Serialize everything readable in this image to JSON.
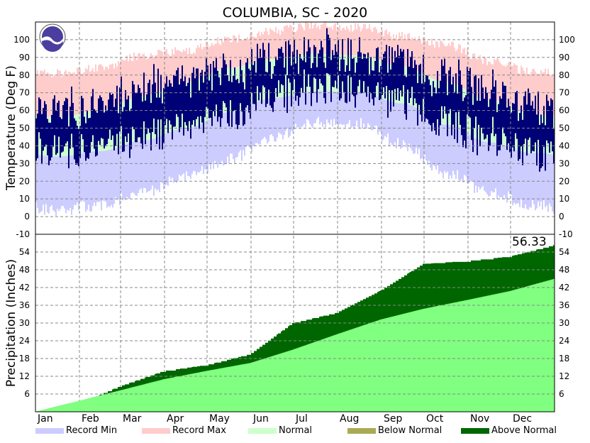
{
  "chart_data": {
    "type": "area",
    "title": "COLUMBIA, SC - 2020",
    "months": [
      "Jan",
      "Feb",
      "Mar",
      "Apr",
      "May",
      "Jun",
      "Jul",
      "Aug",
      "Sep",
      "Oct",
      "Nov",
      "Dec"
    ],
    "temperature": {
      "ylabel": "Temperature (Deg F)",
      "ylim": [
        -10,
        110
      ],
      "ticks": [
        -10,
        0,
        10,
        20,
        30,
        40,
        50,
        60,
        70,
        80,
        90,
        100
      ],
      "grid": true,
      "normal_high_monthly": [
        56,
        60,
        68,
        76,
        84,
        89,
        92,
        91,
        85,
        76,
        66,
        58
      ],
      "normal_low_monthly": [
        34,
        37,
        43,
        50,
        59,
        67,
        71,
        70,
        64,
        52,
        42,
        36
      ],
      "record_max_monthly": [
        80,
        83,
        90,
        93,
        99,
        104,
        107,
        106,
        101,
        96,
        87,
        81
      ],
      "record_min_monthly": [
        5,
        8,
        15,
        24,
        34,
        46,
        55,
        54,
        42,
        26,
        15,
        8
      ],
      "actual_high_monthly": [
        62,
        63,
        73,
        78,
        84,
        89,
        94,
        91,
        86,
        79,
        72,
        61
      ],
      "actual_low_monthly": [
        39,
        40,
        46,
        51,
        58,
        68,
        73,
        71,
        64,
        53,
        45,
        35
      ]
    },
    "precipitation": {
      "ylabel": "Precipitation (Inches)",
      "ylim": [
        0,
        60
      ],
      "ticks": [
        6,
        12,
        18,
        24,
        30,
        36,
        42,
        48,
        54
      ],
      "grid": true,
      "annual_total_label": "56.33",
      "normal_cumulative_month_end": [
        3.7,
        7.2,
        11.0,
        13.8,
        16.5,
        21.0,
        26.2,
        31.2,
        34.8,
        37.8,
        40.8,
        44.9
      ],
      "actual_cumulative_month_end": [
        2.7,
        8.6,
        13.8,
        15.8,
        19.5,
        30.0,
        33.5,
        41.0,
        50.0,
        51.0,
        52.5,
        56.33
      ]
    },
    "legend": {
      "placement": "bottom",
      "items": [
        {
          "label": "Record Min",
          "color": "#ccccff"
        },
        {
          "label": "Record Max",
          "color": "#ffcccc"
        },
        {
          "label": "Normal",
          "color": "#ccffcc"
        },
        {
          "label": "Below Normal",
          "color": "#aaaa55"
        },
        {
          "label": "Above Normal",
          "color": "#006600"
        }
      ]
    },
    "colors": {
      "actual_temperature": "#000077",
      "normal_precipitation": "#80ff80",
      "above_normal_precipitation": "#006600"
    }
  }
}
